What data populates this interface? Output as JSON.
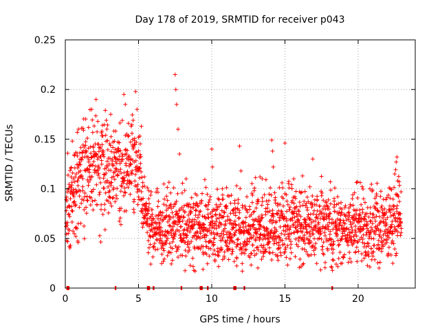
{
  "chart_data": {
    "type": "scatter",
    "title": "Day 178 of 2019, SRMTID for receiver p043",
    "xlabel": "GPS time / hours",
    "ylabel": "SRMTID / TECUs",
    "xlim": [
      0,
      23.9
    ],
    "ylim": [
      0,
      0.25
    ],
    "x_ticks": [
      0,
      5,
      10,
      15,
      20
    ],
    "x_tick_labels": [
      "0",
      "5",
      "10",
      "15",
      "20"
    ],
    "y_ticks": [
      0,
      0.05,
      0.1,
      0.15,
      0.2,
      0.25
    ],
    "y_tick_labels": [
      "0",
      "0.05",
      "0.1",
      "0.15",
      "0.2",
      "0.25"
    ],
    "grid": true,
    "marker": "+",
    "series_color": "#ff0000",
    "series": [
      {
        "name": "SRMTID",
        "points": [
          [
            0.05,
            0.062
          ],
          [
            0.1,
            0.048
          ],
          [
            0.15,
            0.066
          ],
          [
            0.2,
            0.055
          ],
          [
            0.25,
            0.083
          ],
          [
            0.3,
            0.072
          ],
          [
            0.35,
            0.09
          ],
          [
            0.4,
            0.101
          ],
          [
            0.45,
            0.078
          ],
          [
            0.5,
            0.095
          ],
          [
            0.55,
            0.11
          ],
          [
            0.6,
            0.087
          ],
          [
            0.65,
            0.121
          ],
          [
            0.7,
            0.099
          ],
          [
            0.75,
            0.115
          ],
          [
            0.8,
            0.136
          ],
          [
            0.85,
            0.108
          ],
          [
            0.9,
            0.16
          ],
          [
            0.95,
            0.125
          ],
          [
            1.0,
            0.112
          ],
          [
            1.1,
            0.13
          ],
          [
            1.2,
            0.098
          ],
          [
            1.3,
            0.142
          ],
          [
            1.4,
            0.118
          ],
          [
            1.5,
            0.151
          ],
          [
            1.6,
            0.127
          ],
          [
            1.7,
            0.109
          ],
          [
            1.8,
            0.18
          ],
          [
            1.9,
            0.133
          ],
          [
            2.0,
            0.119
          ],
          [
            2.1,
            0.19
          ],
          [
            2.2,
            0.145
          ],
          [
            2.3,
            0.12
          ],
          [
            2.4,
            0.106
          ],
          [
            2.5,
            0.158
          ],
          [
            2.6,
            0.138
          ],
          [
            2.7,
            0.114
          ],
          [
            2.8,
            0.169
          ],
          [
            2.9,
            0.123
          ],
          [
            3.0,
            0.092
          ],
          [
            3.1,
            0.175
          ],
          [
            3.2,
            0.128
          ],
          [
            3.3,
            0.101
          ],
          [
            3.4,
            0.087
          ],
          [
            3.5,
            0.12
          ],
          [
            3.6,
            0.147
          ],
          [
            3.7,
            0.08
          ],
          [
            3.8,
            0.064
          ],
          [
            3.9,
            0.111
          ],
          [
            4.0,
            0.195
          ],
          [
            4.1,
            0.185
          ],
          [
            4.2,
            0.155
          ],
          [
            4.3,
            0.132
          ],
          [
            4.4,
            0.106
          ],
          [
            4.5,
            0.163
          ],
          [
            4.6,
            0.143
          ],
          [
            4.7,
            0.089
          ],
          [
            4.8,
            0.198
          ],
          [
            4.9,
            0.18
          ],
          [
            5.0,
            0.152
          ],
          [
            5.1,
            0.121
          ],
          [
            5.2,
            0.097
          ],
          [
            5.3,
            0.084
          ],
          [
            5.4,
            0.112
          ],
          [
            5.5,
            0.073
          ],
          [
            5.6,
            0.065
          ],
          [
            5.7,
            0.09
          ],
          [
            5.8,
            0.058
          ],
          [
            5.9,
            0.068
          ],
          [
            6.0,
            0.052
          ],
          [
            6.1,
            0.045
          ],
          [
            6.2,
            0.061
          ],
          [
            6.3,
            0.039
          ],
          [
            6.4,
            0.074
          ],
          [
            6.5,
            0.05
          ],
          [
            6.6,
            0.034
          ],
          [
            6.7,
            0.069
          ],
          [
            6.8,
            0.044
          ],
          [
            6.9,
            0.083
          ],
          [
            7.0,
            0.057
          ],
          [
            7.1,
            0.063
          ],
          [
            7.2,
            0.041
          ],
          [
            7.3,
            0.076
          ],
          [
            7.4,
            0.055
          ],
          [
            7.5,
            0.215
          ],
          [
            7.55,
            0.2
          ],
          [
            7.6,
            0.185
          ],
          [
            7.7,
            0.16
          ],
          [
            7.8,
            0.135
          ],
          [
            7.9,
            0.062
          ],
          [
            8.0,
            0.048
          ],
          [
            8.1,
            0.071
          ],
          [
            8.2,
            0.038
          ],
          [
            8.3,
            0.059
          ],
          [
            8.4,
            0.082
          ],
          [
            8.5,
            0.045
          ],
          [
            8.6,
            0.067
          ],
          [
            8.7,
            0.03
          ],
          [
            8.8,
            0.053
          ],
          [
            8.9,
            0.078
          ],
          [
            9.0,
            0.041
          ],
          [
            9.1,
            0.065
          ],
          [
            9.2,
            0.05
          ],
          [
            9.3,
            0.088
          ],
          [
            9.4,
            0.036
          ],
          [
            9.5,
            0.072
          ],
          [
            9.6,
            0.047
          ],
          [
            9.7,
            0.058
          ],
          [
            9.8,
            0.04
          ],
          [
            9.9,
            0.066
          ],
          [
            10.0,
            0.14
          ],
          [
            10.05,
            0.122
          ],
          [
            10.1,
            0.079
          ],
          [
            10.2,
            0.054
          ],
          [
            10.3,
            0.063
          ],
          [
            10.4,
            0.037
          ],
          [
            10.5,
            0.082
          ],
          [
            10.6,
            0.048
          ],
          [
            10.7,
            0.071
          ],
          [
            10.8,
            0.057
          ],
          [
            10.9,
            0.06
          ],
          [
            11.0,
            0.043
          ],
          [
            11.1,
            0.093
          ],
          [
            11.2,
            0.051
          ],
          [
            11.3,
            0.068
          ],
          [
            11.4,
            0.039
          ],
          [
            11.5,
            0.075
          ],
          [
            11.6,
            0.056
          ],
          [
            11.7,
            0.103
          ],
          [
            11.8,
            0.049
          ],
          [
            11.9,
            0.143
          ],
          [
            12.0,
            0.118
          ],
          [
            12.1,
            0.081
          ],
          [
            12.2,
            0.042
          ],
          [
            12.3,
            0.066
          ],
          [
            12.4,
            0.092
          ],
          [
            12.5,
            0.055
          ],
          [
            12.6,
            0.031
          ],
          [
            12.7,
            0.074
          ],
          [
            12.8,
            0.063
          ],
          [
            12.9,
            0.098
          ],
          [
            13.0,
            0.048
          ],
          [
            13.1,
            0.085
          ],
          [
            13.2,
            0.06
          ],
          [
            13.3,
            0.112
          ],
          [
            13.4,
            0.07
          ],
          [
            13.5,
            0.053
          ],
          [
            13.6,
            0.094
          ],
          [
            13.7,
            0.077
          ],
          [
            13.8,
            0.044
          ],
          [
            13.9,
            0.088
          ],
          [
            14.0,
            0.101
          ],
          [
            14.1,
            0.149
          ],
          [
            14.15,
            0.138
          ],
          [
            14.2,
            0.122
          ],
          [
            14.3,
            0.096
          ],
          [
            14.4,
            0.067
          ],
          [
            14.5,
            0.083
          ],
          [
            14.6,
            0.051
          ],
          [
            14.7,
            0.071
          ],
          [
            14.8,
            0.106
          ],
          [
            14.9,
            0.058
          ],
          [
            15.0,
            0.146
          ],
          [
            15.1,
            0.094
          ],
          [
            15.2,
            0.063
          ],
          [
            15.3,
            0.079
          ],
          [
            15.4,
            0.047
          ],
          [
            15.5,
            0.088
          ],
          [
            15.6,
            0.11
          ],
          [
            15.7,
            0.061
          ],
          [
            15.8,
            0.075
          ],
          [
            15.9,
            0.042
          ],
          [
            16.0,
            0.097
          ],
          [
            16.1,
            0.057
          ],
          [
            16.2,
            0.113
          ],
          [
            16.3,
            0.069
          ],
          [
            16.4,
            0.083
          ],
          [
            16.5,
            0.05
          ],
          [
            16.6,
            0.074
          ],
          [
            16.7,
            0.102
          ],
          [
            16.8,
            0.061
          ],
          [
            16.9,
            0.13
          ],
          [
            17.0,
            0.078
          ],
          [
            17.1,
            0.045
          ],
          [
            17.2,
            0.089
          ],
          [
            17.3,
            0.066
          ],
          [
            17.4,
            0.054
          ],
          [
            17.5,
            0.093
          ],
          [
            17.6,
            0.035
          ],
          [
            17.7,
            0.071
          ],
          [
            17.8,
            0.06
          ],
          [
            17.9,
            0.082
          ],
          [
            18.0,
            0.048
          ],
          [
            18.1,
            0.107
          ],
          [
            18.2,
            0.065
          ],
          [
            18.3,
            0.039
          ],
          [
            18.4,
            0.077
          ],
          [
            18.5,
            0.055
          ],
          [
            18.6,
            0.092
          ],
          [
            18.7,
            0.044
          ],
          [
            18.8,
            0.068
          ],
          [
            18.9,
            0.025
          ],
          [
            19.0,
            0.059
          ],
          [
            19.1,
            0.081
          ],
          [
            19.2,
            0.047
          ],
          [
            19.3,
            0.072
          ],
          [
            19.4,
            0.036
          ],
          [
            19.5,
            0.064
          ],
          [
            19.6,
            0.09
          ],
          [
            19.7,
            0.052
          ],
          [
            19.8,
            0.078
          ],
          [
            19.9,
            0.041
          ],
          [
            20.0,
            0.066
          ],
          [
            20.1,
            0.057
          ],
          [
            20.2,
            0.084
          ],
          [
            20.3,
            0.046
          ],
          [
            20.4,
            0.069
          ],
          [
            20.5,
            0.033
          ],
          [
            20.6,
            0.075
          ],
          [
            20.7,
            0.058
          ],
          [
            20.8,
            0.1
          ],
          [
            20.9,
            0.05
          ],
          [
            21.0,
            0.071
          ],
          [
            21.1,
            0.043
          ],
          [
            21.2,
            0.062
          ],
          [
            21.3,
            0.085
          ],
          [
            21.4,
            0.048
          ],
          [
            21.5,
            0.066
          ],
          [
            21.6,
            0.037
          ],
          [
            21.7,
            0.073
          ],
          [
            21.8,
            0.057
          ],
          [
            21.9,
            0.089
          ],
          [
            22.0,
            0.052
          ],
          [
            22.1,
            0.079
          ],
          [
            22.2,
            0.1
          ],
          [
            22.3,
            0.064
          ],
          [
            22.4,
            0.083
          ],
          [
            22.5,
            0.115
          ],
          [
            22.6,
            0.127
          ],
          [
            22.65,
            0.132
          ],
          [
            22.7,
            0.108
          ],
          [
            22.75,
            0.092
          ],
          [
            22.8,
            0.075
          ],
          [
            22.85,
            0.07
          ],
          [
            22.9,
            0.065
          ],
          [
            22.95,
            0.06
          ]
        ],
        "zero_points": [
          0.1,
          0.15,
          0.2,
          3.4,
          5.6,
          5.7,
          6.0,
          7.9,
          9.2,
          9.3,
          9.7,
          11.5,
          11.6,
          12.2,
          18.2
        ]
      }
    ]
  }
}
